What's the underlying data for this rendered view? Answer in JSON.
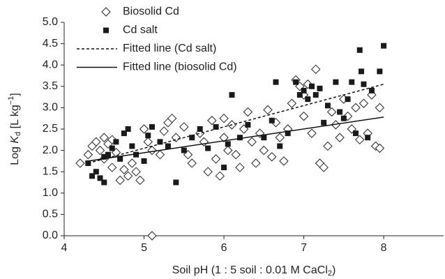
{
  "chart_data": {
    "type": "scatter",
    "x_label": [
      "Soil pH (1 : 5 soil : 0.01 M CaCl",
      "2",
      ")"
    ],
    "y_label": [
      "Log ",
      "K",
      "d",
      " [L kg",
      "−1",
      "]"
    ],
    "xlim": [
      4,
      8.75
    ],
    "xticks": [
      4,
      5,
      6,
      7,
      8
    ],
    "ylim": [
      0,
      5
    ],
    "yticks": [
      {
        "value": 0,
        "label": "0.0"
      },
      {
        "value": 0.5,
        "label": "0.5"
      },
      {
        "value": 1,
        "label": "1.0"
      },
      {
        "value": 1.5,
        "label": "1.5"
      },
      {
        "value": 2,
        "label": "2.0"
      },
      {
        "value": 2.5,
        "label": "2.5"
      },
      {
        "value": 3,
        "label": "3.0"
      },
      {
        "value": 3.5,
        "label": "3.5"
      },
      {
        "value": 4,
        "label": "4.0"
      },
      {
        "value": 4.5,
        "label": "4.5"
      },
      {
        "value": 5,
        "label": "5.0"
      }
    ],
    "series": [
      {
        "name": "Biosolid Cd",
        "color": "#222222",
        "marker": "diamond-open",
        "x": [
          4.2,
          4.3,
          4.35,
          4.4,
          4.45,
          4.5,
          4.5,
          4.55,
          4.6,
          4.65,
          4.7,
          4.75,
          4.8,
          4.85,
          4.9,
          4.95,
          5.0,
          5.05,
          5.1,
          5.1,
          5.2,
          5.3,
          5.35,
          5.4,
          5.5,
          5.55,
          5.6,
          5.7,
          5.75,
          5.8,
          5.85,
          5.9,
          5.95,
          6.0,
          6.05,
          6.1,
          6.15,
          6.2,
          6.25,
          6.3,
          6.35,
          6.4,
          6.45,
          6.5,
          6.55,
          6.6,
          6.65,
          6.7,
          6.75,
          6.8,
          6.85,
          6.9,
          6.95,
          7.0,
          7.05,
          7.1,
          7.15,
          7.2,
          7.25,
          7.3,
          7.35,
          7.4,
          7.45,
          7.5,
          7.55,
          7.6,
          7.65,
          7.7,
          7.75,
          7.8,
          7.85,
          7.9,
          7.95,
          7.95,
          7.0,
          5.25,
          4.6,
          6.0
        ],
        "values": [
          1.7,
          1.9,
          2.1,
          2.2,
          2.0,
          2.3,
          1.8,
          2.15,
          2.25,
          1.95,
          1.3,
          1.55,
          1.4,
          1.7,
          1.5,
          1.3,
          2.5,
          2.2,
          0.0,
          2.0,
          1.9,
          2.65,
          2.75,
          2.3,
          2.55,
          1.9,
          1.7,
          2.4,
          2.2,
          1.5,
          2.7,
          1.8,
          1.4,
          2.3,
          2.0,
          2.6,
          1.9,
          1.6,
          2.5,
          2.9,
          2.2,
          1.7,
          2.4,
          2.0,
          2.95,
          1.85,
          2.65,
          2.3,
          1.75,
          2.5,
          3.1,
          3.65,
          3.5,
          2.8,
          3.55,
          2.4,
          3.9,
          1.7,
          1.6,
          2.1,
          2.9,
          2.6,
          2.3,
          3.2,
          2.8,
          2.5,
          3.0,
          2.25,
          3.1,
          2.4,
          3.3,
          2.1,
          2.05,
          3.0,
          3.3,
          2.45,
          1.6,
          2.75
        ]
      },
      {
        "name": "Cd salt",
        "color": "#1a1a1a",
        "marker": "square",
        "x": [
          4.3,
          4.35,
          4.4,
          4.45,
          4.5,
          4.5,
          4.55,
          4.6,
          4.65,
          4.7,
          4.75,
          4.8,
          4.85,
          4.9,
          5.0,
          5.05,
          5.1,
          5.2,
          5.3,
          5.4,
          5.5,
          5.6,
          5.7,
          5.8,
          5.9,
          6.0,
          6.05,
          6.1,
          6.2,
          6.3,
          6.5,
          6.6,
          6.65,
          6.7,
          6.8,
          6.9,
          6.95,
          7.0,
          7.05,
          7.1,
          7.15,
          7.2,
          7.25,
          7.3,
          7.4,
          7.45,
          7.5,
          7.55,
          7.6,
          7.65,
          7.7,
          7.72,
          7.75,
          7.8,
          7.85,
          7.95,
          8.0
        ],
        "values": [
          1.7,
          1.4,
          1.5,
          1.35,
          1.25,
          1.85,
          1.9,
          2.05,
          2.2,
          1.8,
          2.4,
          2.5,
          2.1,
          1.9,
          1.75,
          2.35,
          2.55,
          2.2,
          2.1,
          1.25,
          2.0,
          2.3,
          2.5,
          2.05,
          2.55,
          1.6,
          2.15,
          3.3,
          2.3,
          2.6,
          2.3,
          2.7,
          3.6,
          2.1,
          2.4,
          3.6,
          3.3,
          3.4,
          3.2,
          3.5,
          3.3,
          3.45,
          2.65,
          3.05,
          3.6,
          2.9,
          2.75,
          3.2,
          3.6,
          2.4,
          4.35,
          3.85,
          3.55,
          2.3,
          3.4,
          3.85,
          4.45
        ]
      },
      {
        "name": "Fitted line (Cd salt)",
        "color": "#111111",
        "line": "dashed",
        "x": [
          4.3,
          8.0
        ],
        "values": [
          1.7,
          3.55
        ]
      },
      {
        "name": "Fitted line (biosolid Cd)",
        "color": "#111111",
        "line": "solid",
        "x": [
          4.3,
          8.0
        ],
        "values": [
          1.75,
          2.78
        ]
      }
    ]
  }
}
